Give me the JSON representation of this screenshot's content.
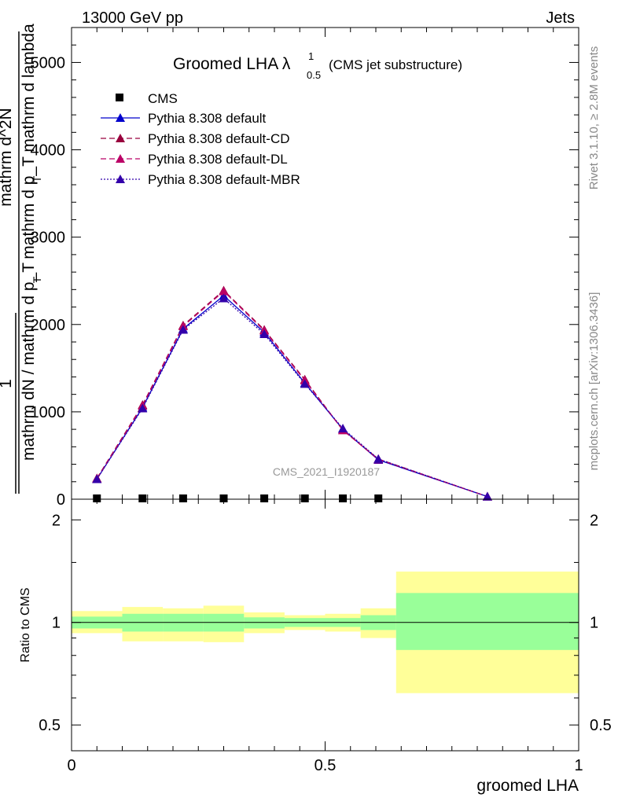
{
  "header": {
    "left": "13000 GeV pp",
    "right": "Jets"
  },
  "side_labels": {
    "rivet": "Rivet 3.1.10, ≥ 2.8M events",
    "mcplots": "mcplots.cern.ch [arXiv:1306.3436]"
  },
  "chart_data": [
    {
      "type": "line",
      "title": "Groomed LHA",
      "title_symbol": "λ",
      "title_sup": "1",
      "title_sub": "0.5",
      "title_suffix": "(CMS jet substructure)",
      "watermark": "CMS_2021_I1920187",
      "ylabel_lines": [
        "1",
        "mathrm dN / mathrm d p_T",
        "mathrm d^2N",
        "mathrm d p_T mathrm d lambda"
      ],
      "ylabel_subscript": "T",
      "xlim": [
        0,
        1
      ],
      "ylim": [
        0,
        5400
      ],
      "yticks": [
        {
          "v": 0,
          "label": "0"
        },
        {
          "v": 1000,
          "label": "1000"
        },
        {
          "v": 2000,
          "label": "2000"
        },
        {
          "v": 3000,
          "label": "3000"
        },
        {
          "v": 4000,
          "label": "4000"
        },
        {
          "v": 5000,
          "label": "5000"
        }
      ],
      "data_series": [
        {
          "name": "CMS",
          "marker": "square",
          "color": "#000000",
          "x": [
            0.05,
            0.14,
            0.22,
            0.3,
            0.38,
            0.46,
            0.535,
            0.605
          ],
          "y": [
            0,
            0,
            0,
            0,
            0,
            0,
            0,
            0
          ]
        }
      ],
      "series": [
        {
          "name": "Pythia 8.308 default",
          "color": "#0000cc",
          "dash": "",
          "x": [
            0.05,
            0.14,
            0.22,
            0.3,
            0.38,
            0.46,
            0.535,
            0.605,
            0.82
          ],
          "y": [
            230,
            1050,
            1950,
            2330,
            1910,
            1330,
            800,
            450,
            30
          ]
        },
        {
          "name": "Pythia 8.308 default-CD",
          "color": "#99003d",
          "dash": "7,4",
          "x": [
            0.05,
            0.14,
            0.22,
            0.3,
            0.38,
            0.46,
            0.535,
            0.605,
            0.82
          ],
          "y": [
            240,
            1080,
            1990,
            2390,
            1940,
            1370,
            790,
            460,
            30
          ]
        },
        {
          "name": "Pythia 8.308 default-DL",
          "color": "#bb0066",
          "dash": "7,4",
          "x": [
            0.05,
            0.14,
            0.22,
            0.3,
            0.38,
            0.46,
            0.535,
            0.605,
            0.82
          ],
          "y": [
            235,
            1070,
            1980,
            2380,
            1930,
            1360,
            790,
            455,
            30
          ]
        },
        {
          "name": "Pythia 8.308 default-MBR",
          "color": "#3300aa",
          "dash": "2,2",
          "x": [
            0.05,
            0.14,
            0.22,
            0.3,
            0.38,
            0.46,
            0.535,
            0.605,
            0.82
          ],
          "y": [
            230,
            1040,
            1940,
            2300,
            1890,
            1320,
            810,
            460,
            30
          ]
        }
      ]
    },
    {
      "type": "area",
      "ylabel": "Ratio to CMS",
      "xlabel": "groomed LHA",
      "xlim": [
        0,
        1
      ],
      "ylim": [
        0.42,
        2.3
      ],
      "y_scale": "log",
      "xticks": [
        {
          "v": 0,
          "label": "0"
        },
        {
          "v": 0.5,
          "label": "0.5"
        },
        {
          "v": 1,
          "label": "1"
        }
      ],
      "yticks": [
        {
          "v": 0.5,
          "label": "0.5"
        },
        {
          "v": 1,
          "label": "1"
        },
        {
          "v": 2,
          "label": "2"
        }
      ],
      "reference_line": 1,
      "bands": [
        {
          "x0": 0.0,
          "x1": 0.1,
          "yellow": [
            0.93,
            1.08
          ],
          "green": [
            0.96,
            1.04
          ]
        },
        {
          "x0": 0.1,
          "x1": 0.18,
          "yellow": [
            0.88,
            1.11
          ],
          "green": [
            0.94,
            1.06
          ]
        },
        {
          "x0": 0.18,
          "x1": 0.26,
          "yellow": [
            0.88,
            1.1
          ],
          "green": [
            0.94,
            1.06
          ]
        },
        {
          "x0": 0.26,
          "x1": 0.34,
          "yellow": [
            0.875,
            1.12
          ],
          "green": [
            0.94,
            1.06
          ]
        },
        {
          "x0": 0.34,
          "x1": 0.42,
          "yellow": [
            0.93,
            1.07
          ],
          "green": [
            0.96,
            1.035
          ]
        },
        {
          "x0": 0.42,
          "x1": 0.5,
          "yellow": [
            0.95,
            1.05
          ],
          "green": [
            0.97,
            1.03
          ]
        },
        {
          "x0": 0.5,
          "x1": 0.57,
          "yellow": [
            0.94,
            1.06
          ],
          "green": [
            0.97,
            1.03
          ]
        },
        {
          "x0": 0.57,
          "x1": 0.64,
          "yellow": [
            0.9,
            1.1
          ],
          "green": [
            0.95,
            1.05
          ]
        },
        {
          "x0": 0.64,
          "x1": 1.0,
          "yellow": [
            0.62,
            1.41
          ],
          "green": [
            0.83,
            1.22
          ]
        }
      ],
      "band_colors": {
        "yellow": "#ffff99",
        "green": "#99ff99"
      }
    }
  ]
}
